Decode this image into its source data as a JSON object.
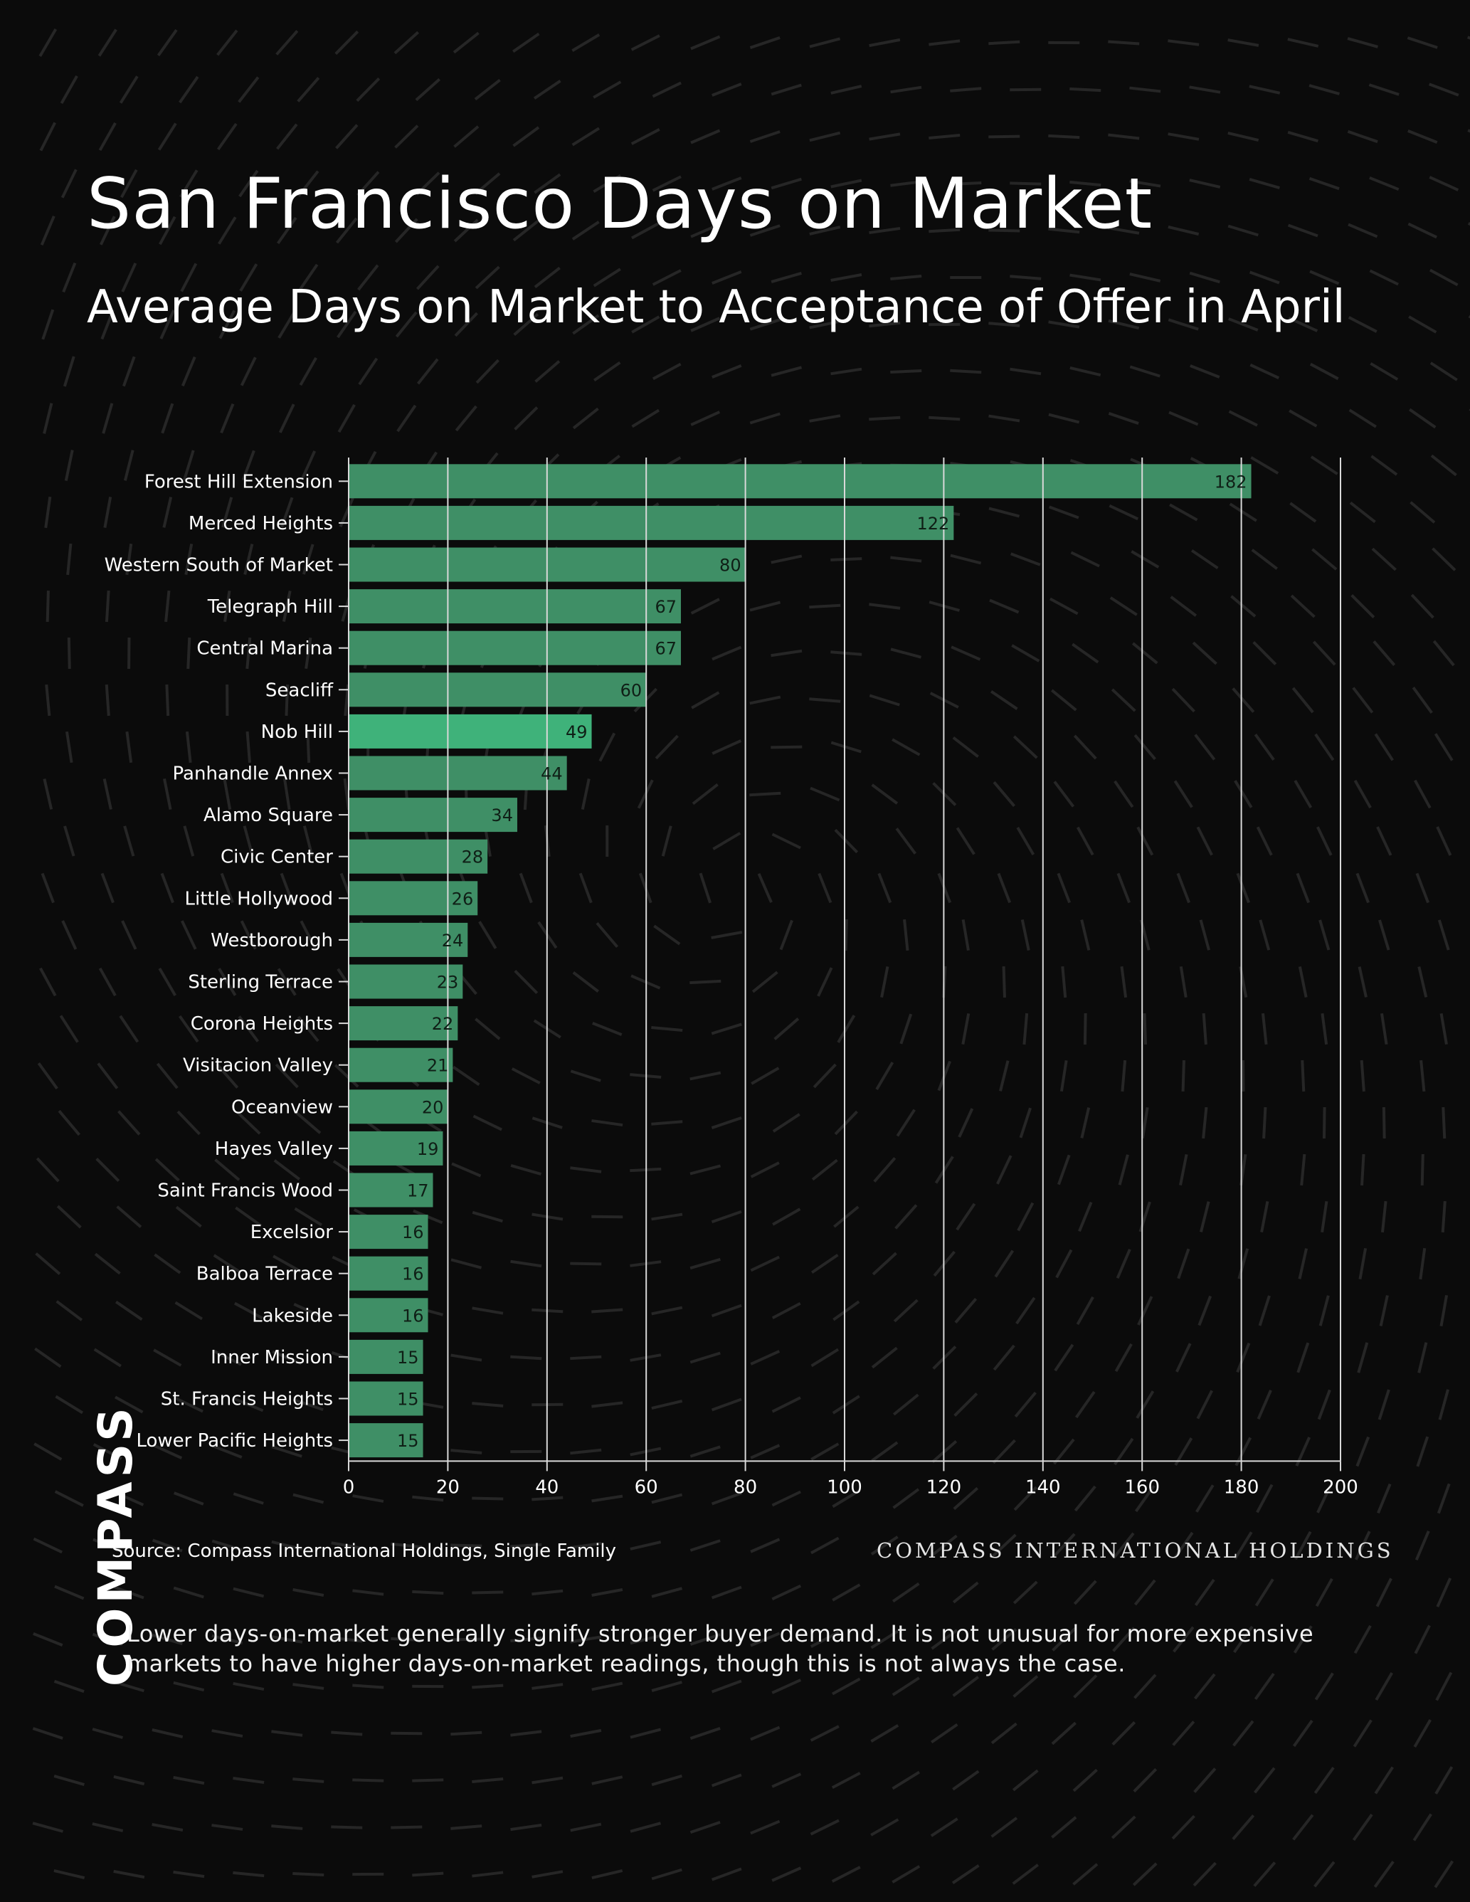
{
  "page": {
    "title": "San Francisco Days on Market",
    "subtitle": "Average Days on Market to Acceptance of Offer in April",
    "source": "Source: Compass International Holdings, Single Family",
    "company": "COMPASS INTERNATIONAL HOLDINGS",
    "note": "Lower days-on-market generally signify stronger buyer demand. It is not unusual for more expensive markets to have higher days-on-market readings, though this is not always the case.",
    "logo": "COMPASS"
  },
  "colors": {
    "background": "#0b0b0b",
    "bar": "#3f8f66",
    "bar_highlight": "#3fb27a",
    "grid": "#d9d9d9",
    "text": "#ffffff"
  },
  "chart_data": {
    "type": "bar",
    "orientation": "horizontal",
    "categories": [
      "Forest Hill Extension",
      "Merced Heights",
      "Western South of Market",
      "Telegraph Hill",
      "Central Marina",
      "Seacliff",
      "Nob Hill",
      "Panhandle Annex",
      "Alamo Square",
      "Civic Center",
      "Little Hollywood",
      "Westborough",
      "Sterling Terrace",
      "Corona Heights",
      "Visitacion Valley",
      "Oceanview",
      "Hayes Valley",
      "Saint Francis Wood",
      "Excelsior",
      "Balboa Terrace",
      "Lakeside",
      "Inner Mission",
      "St. Francis Heights",
      "Lower Pacific Heights"
    ],
    "values": [
      182,
      122,
      80,
      67,
      67,
      60,
      49,
      44,
      34,
      28,
      26,
      24,
      23,
      22,
      21,
      20,
      19,
      17,
      16,
      16,
      16,
      15,
      15,
      15
    ],
    "highlight": "Nob Hill",
    "xlim": [
      0,
      200
    ],
    "xticks": [
      0,
      20,
      40,
      60,
      80,
      100,
      120,
      140,
      160,
      180,
      200
    ],
    "grid": true
  }
}
